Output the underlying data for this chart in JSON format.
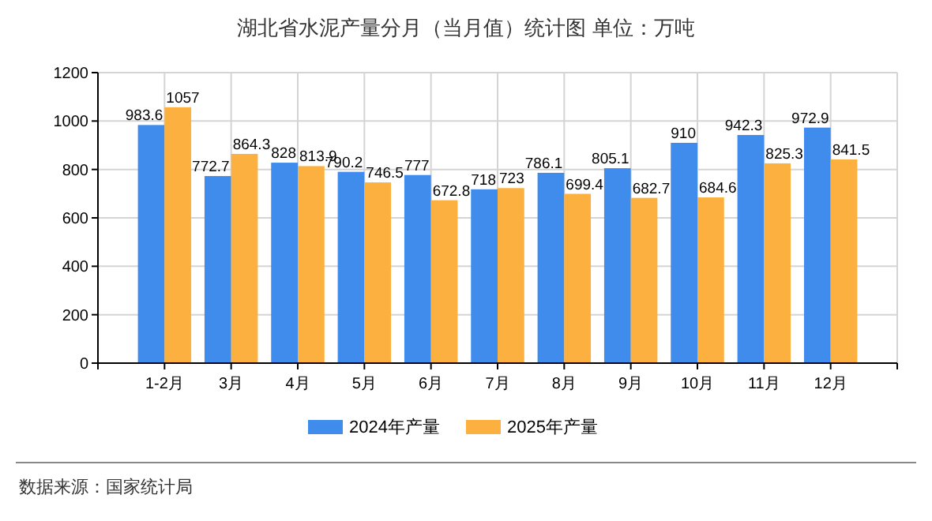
{
  "chart_data": {
    "type": "bar",
    "title": "湖北省水泥产量分月（当月值）统计图 单位：万吨",
    "categories": [
      "1-2月",
      "3月",
      "4月",
      "5月",
      "6月",
      "7月",
      "8月",
      "9月",
      "10月",
      "11月",
      "12月"
    ],
    "series": [
      {
        "name": "2024年产量",
        "color": "#3f8cec",
        "values": [
          983.6,
          772.7,
          828,
          790.2,
          777,
          718,
          786.1,
          805.1,
          910,
          942.3,
          972.9
        ]
      },
      {
        "name": "2025年产量",
        "color": "#fbb03f",
        "values": [
          1057,
          864.3,
          813.9,
          746.5,
          672.8,
          723,
          699.4,
          682.7,
          684.6,
          825.3,
          841.5
        ]
      }
    ],
    "ylim": [
      0,
      1200
    ],
    "yticks": [
      0,
      200,
      400,
      600,
      800,
      1000,
      1200
    ],
    "grid": true,
    "legend": "bottom",
    "data_labels": true,
    "annotations": [
      "数据来源：国家统计局"
    ]
  }
}
